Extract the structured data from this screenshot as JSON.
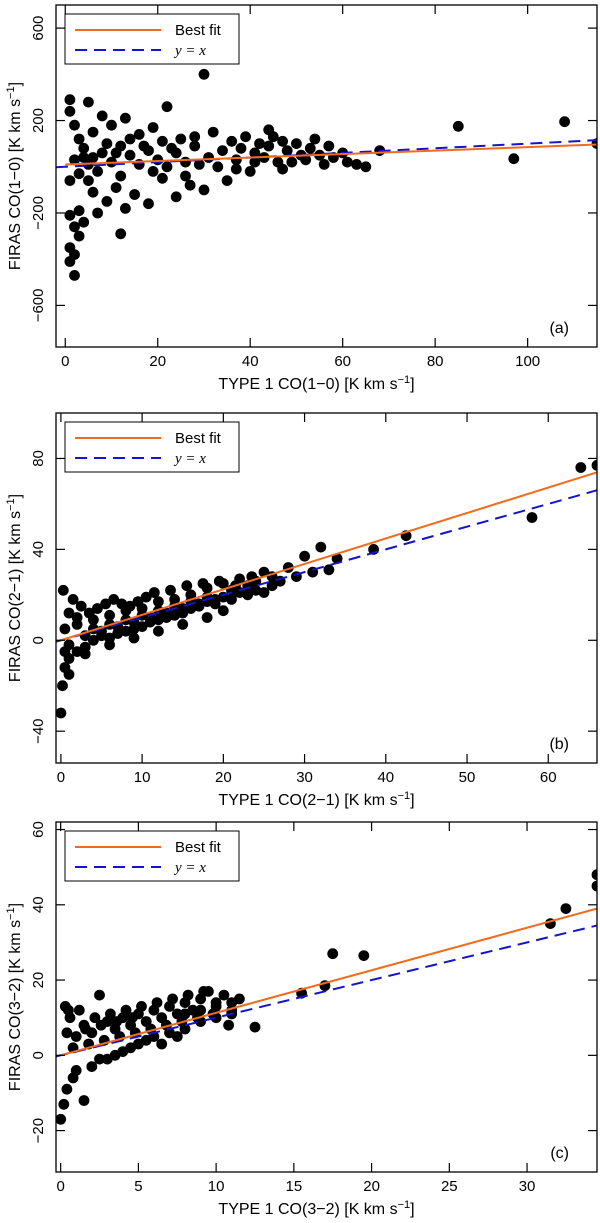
{
  "colors": {
    "best_fit": "#f26b1d",
    "identity": "#1414c8",
    "points": "#000000",
    "axes": "#000000"
  },
  "chart_data": [
    {
      "type": "scatter",
      "panel_tag": "(a)",
      "xlabel": "TYPE 1 CO(1−0) [K km s",
      "ylabel": "FIRAS CO(1−0) [K km s",
      "unit_superscript": "−1",
      "unit_close": "]",
      "xlim": [
        -2,
        115
      ],
      "ylim": [
        -780,
        700
      ],
      "xticks": [
        0,
        20,
        40,
        60,
        80,
        100
      ],
      "xtick_labels": [
        "0",
        "20",
        "40",
        "60",
        "80",
        "100"
      ],
      "yticks": [
        -600,
        -200,
        200,
        600
      ],
      "ytick_labels": [
        "−600",
        "−200",
        "200",
        "600"
      ],
      "legend": {
        "position": "top-left",
        "entries": [
          {
            "label": "Best fit",
            "style": "solid"
          },
          {
            "label": "y = x",
            "style": "dashed"
          }
        ]
      },
      "best_fit": {
        "slope": 0.75,
        "intercept": 10
      },
      "identity": {
        "slope": 1.0,
        "intercept": 0
      },
      "points": [
        [
          30,
          400
        ],
        [
          1,
          290
        ],
        [
          5,
          280
        ],
        [
          22,
          260
        ],
        [
          108,
          195
        ],
        [
          85,
          175
        ],
        [
          115,
          100
        ],
        [
          97,
          35
        ],
        [
          68,
          70
        ],
        [
          12,
          -290
        ],
        [
          2,
          -470
        ],
        [
          1,
          -410
        ],
        [
          2,
          -380
        ],
        [
          3,
          -300
        ],
        [
          1,
          -350
        ],
        [
          8,
          220
        ],
        [
          10,
          180
        ],
        [
          13,
          210
        ],
        [
          16,
          140
        ],
        [
          19,
          170
        ],
        [
          25,
          120
        ],
        [
          28,
          90
        ],
        [
          32,
          150
        ],
        [
          36,
          110
        ],
        [
          38,
          80
        ],
        [
          41,
          60
        ],
        [
          43,
          40
        ],
        [
          46,
          20
        ],
        [
          48,
          70
        ],
        [
          50,
          100
        ],
        [
          52,
          30
        ],
        [
          55,
          50
        ],
        [
          58,
          40
        ],
        [
          60,
          60
        ],
        [
          63,
          10
        ],
        [
          44,
          160
        ],
        [
          40,
          -20
        ],
        [
          35,
          -60
        ],
        [
          30,
          -100
        ],
        [
          27,
          -80
        ],
        [
          24,
          -130
        ],
        [
          21,
          -50
        ],
        [
          18,
          -160
        ],
        [
          15,
          -120
        ],
        [
          13,
          -180
        ],
        [
          11,
          -90
        ],
        [
          9,
          -150
        ],
        [
          7,
          -200
        ],
        [
          6,
          -110
        ],
        [
          4,
          -240
        ],
        [
          3,
          -190
        ],
        [
          2,
          -260
        ],
        [
          1,
          -210
        ],
        [
          5,
          -60
        ],
        [
          4,
          40
        ],
        [
          3,
          120
        ],
        [
          2,
          180
        ],
        [
          6,
          150
        ],
        [
          8,
          60
        ],
        [
          10,
          20
        ],
        [
          12,
          90
        ],
        [
          14,
          50
        ],
        [
          16,
          10
        ],
        [
          18,
          70
        ],
        [
          20,
          30
        ],
        [
          22,
          0
        ],
        [
          24,
          60
        ],
        [
          26,
          20
        ],
        [
          28,
          130
        ],
        [
          31,
          40
        ],
        [
          33,
          0
        ],
        [
          37,
          30
        ],
        [
          39,
          130
        ],
        [
          42,
          100
        ],
        [
          45,
          130
        ],
        [
          47,
          -10
        ],
        [
          49,
          20
        ],
        [
          53,
          80
        ],
        [
          56,
          10
        ],
        [
          1,
          240
        ],
        [
          2,
          30
        ],
        [
          1,
          -60
        ],
        [
          3,
          -30
        ],
        [
          4,
          80
        ],
        [
          5,
          10
        ],
        [
          6,
          40
        ],
        [
          7,
          -20
        ],
        [
          9,
          100
        ],
        [
          11,
          60
        ],
        [
          12,
          -40
        ],
        [
          14,
          120
        ],
        [
          17,
          90
        ],
        [
          19,
          -20
        ],
        [
          21,
          110
        ],
        [
          23,
          80
        ],
        [
          26,
          -40
        ],
        [
          29,
          10
        ],
        [
          34,
          70
        ],
        [
          37,
          -10
        ],
        [
          41,
          20
        ],
        [
          44,
          90
        ],
        [
          47,
          110
        ],
        [
          51,
          50
        ],
        [
          54,
          120
        ],
        [
          57,
          90
        ],
        [
          61,
          20
        ],
        [
          65,
          0
        ]
      ]
    },
    {
      "type": "scatter",
      "panel_tag": "(b)",
      "xlabel": "TYPE 1 CO(2−1) [K km s",
      "ylabel": "FIRAS CO(2−1) [K km s",
      "unit_superscript": "−1",
      "unit_close": "]",
      "xlim": [
        -0.6,
        66
      ],
      "ylim": [
        -54,
        100
      ],
      "xticks": [
        0,
        10,
        20,
        30,
        40,
        50,
        60
      ],
      "xtick_labels": [
        "0",
        "10",
        "20",
        "30",
        "40",
        "50",
        "60"
      ],
      "yticks": [
        -40,
        0,
        40,
        80
      ],
      "ytick_labels": [
        "−40",
        "0",
        "40",
        "80"
      ],
      "legend": {
        "position": "top-left",
        "entries": [
          {
            "label": "Best fit",
            "style": "solid"
          },
          {
            "label": "y = x",
            "style": "dashed"
          }
        ]
      },
      "best_fit": {
        "slope": 1.12,
        "intercept": 0
      },
      "identity": {
        "slope": 1.0,
        "intercept": 0
      },
      "points": [
        [
          64,
          76
        ],
        [
          66,
          77
        ],
        [
          58,
          54
        ],
        [
          42.5,
          46
        ],
        [
          38.5,
          40
        ],
        [
          34,
          36
        ],
        [
          32,
          41
        ],
        [
          30,
          37
        ],
        [
          28,
          32
        ],
        [
          26,
          28
        ],
        [
          25,
          30
        ],
        [
          24,
          26
        ],
        [
          23,
          24
        ],
        [
          22,
          27
        ],
        [
          21,
          22
        ],
        [
          20,
          25
        ],
        [
          19,
          18
        ],
        [
          18,
          23
        ],
        [
          17,
          16
        ],
        [
          16,
          20
        ],
        [
          15,
          14
        ],
        [
          14,
          18
        ],
        [
          13,
          12
        ],
        [
          12,
          17
        ],
        [
          11,
          10
        ],
        [
          10,
          14
        ],
        [
          9,
          8
        ],
        [
          8,
          13
        ],
        [
          7,
          6
        ],
        [
          6,
          11
        ],
        [
          5,
          4
        ],
        [
          4,
          9
        ],
        [
          3,
          2
        ],
        [
          2,
          7
        ],
        [
          1,
          -2
        ],
        [
          0.5,
          5
        ],
        [
          0,
          -32
        ],
        [
          0.2,
          -20
        ],
        [
          0.5,
          -12
        ],
        [
          1,
          -8
        ],
        [
          2,
          -5
        ],
        [
          3,
          -3
        ],
        [
          4,
          0
        ],
        [
          5,
          2
        ],
        [
          6,
          1
        ],
        [
          7,
          3
        ],
        [
          8,
          4
        ],
        [
          9,
          5
        ],
        [
          10,
          6
        ],
        [
          11,
          8
        ],
        [
          12,
          9
        ],
        [
          13,
          10
        ],
        [
          14,
          11
        ],
        [
          15,
          12
        ],
        [
          16,
          14
        ],
        [
          17,
          15
        ],
        [
          18,
          17
        ],
        [
          19,
          16
        ],
        [
          20,
          19
        ],
        [
          21,
          18
        ],
        [
          22,
          21
        ],
        [
          23,
          20
        ],
        [
          24,
          22
        ],
        [
          26,
          24
        ],
        [
          27,
          26
        ],
        [
          29,
          28
        ],
        [
          33,
          31
        ],
        [
          31,
          30
        ],
        [
          25,
          21
        ],
        [
          20,
          13
        ],
        [
          18,
          10
        ],
        [
          15,
          7
        ],
        [
          12,
          4
        ],
        [
          9,
          1
        ],
        [
          6,
          -2
        ],
        [
          3,
          -6
        ],
        [
          1,
          -15
        ],
        [
          0.3,
          22
        ],
        [
          1.5,
          18
        ],
        [
          2.5,
          15
        ],
        [
          3.5,
          12
        ],
        [
          4.5,
          14
        ],
        [
          5.5,
          16
        ],
        [
          6.5,
          18
        ],
        [
          7.5,
          16
        ],
        [
          8.5,
          15
        ],
        [
          9.5,
          17
        ],
        [
          10.5,
          19
        ],
        [
          11.5,
          21
        ],
        [
          13.5,
          22
        ],
        [
          15.5,
          24
        ],
        [
          17.5,
          25
        ],
        [
          19.5,
          26
        ],
        [
          21.5,
          24
        ],
        [
          23.5,
          28
        ],
        [
          2,
          10
        ],
        [
          1,
          12
        ],
        [
          0.5,
          -5
        ],
        [
          4,
          5
        ],
        [
          6,
          7
        ],
        [
          8,
          9
        ],
        [
          10,
          11
        ],
        [
          12,
          13
        ],
        [
          14,
          15
        ],
        [
          16,
          17
        ],
        [
          18,
          19
        ]
      ]
    },
    {
      "type": "scatter",
      "panel_tag": "(c)",
      "xlabel": "TYPE 1 CO(3−2) [K km s",
      "ylabel": "FIRAS CO(3−2) [K km s",
      "unit_superscript": "−1",
      "unit_close": "]",
      "xlim": [
        -0.3,
        34.5
      ],
      "ylim": [
        -31,
        62
      ],
      "xticks": [
        0,
        5,
        10,
        15,
        20,
        25,
        30
      ],
      "xtick_labels": [
        "0",
        "5",
        "10",
        "15",
        "20",
        "25",
        "30"
      ],
      "yticks": [
        -20,
        0,
        20,
        40,
        60
      ],
      "ytick_labels": [
        "−20",
        "0",
        "20",
        "40",
        "60"
      ],
      "legend": {
        "position": "top-left",
        "entries": [
          {
            "label": "Best fit",
            "style": "solid"
          },
          {
            "label": "y = x",
            "style": "dashed"
          }
        ]
      },
      "best_fit": {
        "slope": 1.13,
        "intercept": 0
      },
      "identity": {
        "slope": 1.0,
        "intercept": 0
      },
      "points": [
        [
          34.5,
          48
        ],
        [
          34.5,
          45
        ],
        [
          32.5,
          39
        ],
        [
          31.5,
          35
        ],
        [
          19.5,
          26.5
        ],
        [
          17.5,
          27
        ],
        [
          17,
          18.5
        ],
        [
          15.5,
          16.5
        ],
        [
          12.5,
          7.5
        ],
        [
          11.5,
          15
        ],
        [
          11,
          14
        ],
        [
          10.5,
          16
        ],
        [
          10,
          13
        ],
        [
          9.5,
          17
        ],
        [
          9,
          15
        ],
        [
          8.5,
          12
        ],
        [
          8,
          14
        ],
        [
          7.5,
          11
        ],
        [
          7,
          13
        ],
        [
          6.5,
          10
        ],
        [
          6,
          12
        ],
        [
          5.5,
          9
        ],
        [
          5,
          11
        ],
        [
          4.5,
          8
        ],
        [
          4,
          10
        ],
        [
          3.5,
          7
        ],
        [
          3,
          9
        ],
        [
          2.5,
          16
        ],
        [
          2,
          6
        ],
        [
          1.5,
          8
        ],
        [
          1,
          5
        ],
        [
          0.5,
          12
        ],
        [
          0,
          -17
        ],
        [
          0.2,
          -13
        ],
        [
          0.4,
          -9
        ],
        [
          0.8,
          -6
        ],
        [
          1.5,
          -12
        ],
        [
          2,
          -3
        ],
        [
          3,
          -1
        ],
        [
          4,
          1
        ],
        [
          5,
          3
        ],
        [
          6,
          5
        ],
        [
          7,
          6
        ],
        [
          8,
          7
        ],
        [
          9,
          9
        ],
        [
          10,
          10
        ],
        [
          11,
          12
        ],
        [
          10.8,
          8
        ],
        [
          9.8,
          11
        ],
        [
          8.8,
          10
        ],
        [
          7.8,
          9
        ],
        [
          6.8,
          8
        ],
        [
          5.8,
          7
        ],
        [
          4.8,
          6
        ],
        [
          3.8,
          5
        ],
        [
          2.8,
          4
        ],
        [
          1.8,
          3
        ],
        [
          0.8,
          2
        ],
        [
          0.3,
          13
        ],
        [
          0.6,
          10
        ],
        [
          1.2,
          12
        ],
        [
          2.2,
          10
        ],
        [
          3.2,
          11
        ],
        [
          4.2,
          12
        ],
        [
          5.2,
          13
        ],
        [
          6.2,
          14
        ],
        [
          7.2,
          15
        ],
        [
          8.2,
          16
        ],
        [
          9.2,
          17
        ],
        [
          1,
          -4
        ],
        [
          2.5,
          -1
        ],
        [
          3.5,
          0
        ],
        [
          4.5,
          2
        ],
        [
          5.5,
          4
        ],
        [
          6.5,
          3
        ],
        [
          7.5,
          5
        ],
        [
          0.4,
          6
        ],
        [
          1.6,
          7
        ],
        [
          2.6,
          8
        ],
        [
          3.6,
          9
        ],
        [
          4.6,
          10
        ],
        [
          8,
          11
        ],
        [
          9,
          12
        ],
        [
          10,
          14
        ],
        [
          11,
          11
        ]
      ]
    }
  ]
}
